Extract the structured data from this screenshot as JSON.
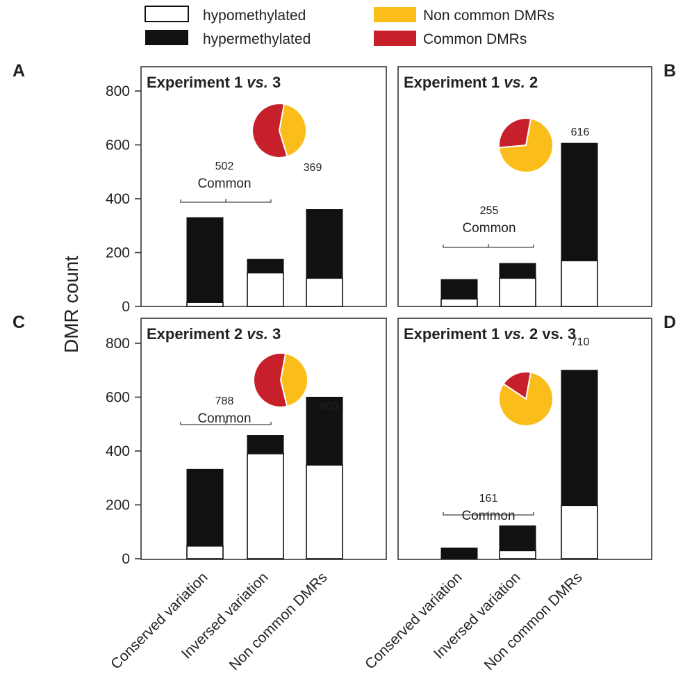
{
  "legend": {
    "hypo": "hypomethylated",
    "hyper": "hypermethylated",
    "noncommon": "Non common DMRs",
    "common": "Common DMRs"
  },
  "colors": {
    "hypo": "#ffffff",
    "hyper": "#111111",
    "noncommon": "#fbbd19",
    "common": "#c8202a"
  },
  "y_axis_label": "DMR  count",
  "categories": [
    "Conserved variation",
    "Inversed variation",
    "Non common DMRs"
  ],
  "chart_data": [
    {
      "type": "bar",
      "panel": "A",
      "title_main": "Experiment 1 ",
      "title_vs": "vs.",
      "title_tail": " 3",
      "categories": [
        "Conserved variation",
        "Inversed variation",
        "Non common DMRs"
      ],
      "series": [
        {
          "name": "hypomethylated",
          "values": [
            15,
            125,
            105
          ]
        },
        {
          "name": "hypermethylated",
          "values": [
            315,
            50,
            255
          ]
        }
      ],
      "ylim": [
        0,
        800
      ],
      "yticks": [
        "0",
        "200",
        "400",
        "600",
        "800"
      ],
      "common_count": "502",
      "common_word": "Common",
      "noncommon_label": "369",
      "pie": {
        "common": 502,
        "noncommon": 369
      }
    },
    {
      "type": "bar",
      "panel": "B",
      "title_main": "Experiment 1 ",
      "title_vs": "vs.",
      "title_tail": " 2",
      "categories": [
        "Conserved variation",
        "Inversed variation",
        "Non common DMRs"
      ],
      "series": [
        {
          "name": "hypomethylated",
          "values": [
            28,
            105,
            170
          ]
        },
        {
          "name": "hypermethylated",
          "values": [
            72,
            55,
            436
          ]
        }
      ],
      "ylim": [
        0,
        800
      ],
      "yticks": [],
      "common_count": "255",
      "common_word": "Common",
      "noncommon_label": "616",
      "pie": {
        "common": 255,
        "noncommon": 616
      }
    },
    {
      "type": "bar",
      "panel": "C",
      "title_main": "Experiment 2 ",
      "title_vs": "vs.",
      "title_tail": " 3",
      "categories": [
        "Conserved variation",
        "Inversed variation",
        "Non common DMRs"
      ],
      "series": [
        {
          "name": "hypomethylated",
          "values": [
            47,
            390,
            348
          ]
        },
        {
          "name": "hypermethylated",
          "values": [
            285,
            68,
            252
          ]
        }
      ],
      "ylim": [
        0,
        800
      ],
      "yticks": [
        "0",
        "200",
        "400",
        "600",
        "800"
      ],
      "common_count": "788",
      "common_word": "Common",
      "noncommon_label": "603",
      "pie": {
        "common": 788,
        "noncommon": 603
      }
    },
    {
      "type": "bar",
      "panel": "D",
      "title_main": "Experiment 1 ",
      "title_vs": "vs.",
      "title_tail": " 2 vs. 3",
      "categories": [
        "Conserved variation",
        "Inversed variation",
        "Non common DMRs"
      ],
      "series": [
        {
          "name": "hypomethylated",
          "values": [
            0,
            30,
            198
          ]
        },
        {
          "name": "hypermethylated",
          "values": [
            40,
            92,
            502
          ]
        }
      ],
      "ylim": [
        0,
        800
      ],
      "yticks": [],
      "common_count": "161",
      "common_word": "Common",
      "noncommon_label": "710",
      "pie": {
        "common": 161,
        "noncommon": 710
      }
    }
  ]
}
